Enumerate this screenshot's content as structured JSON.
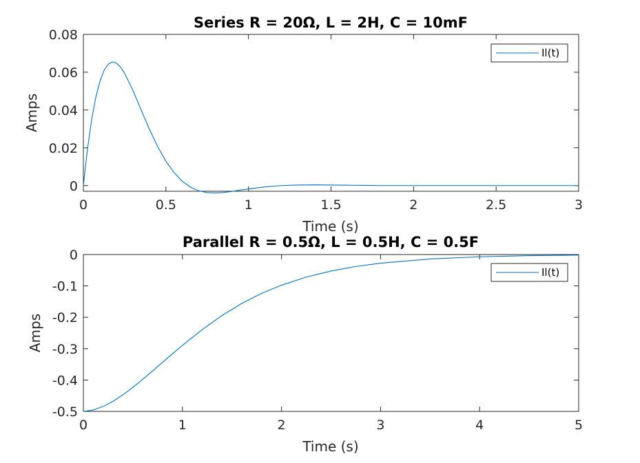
{
  "chart_data": [
    {
      "type": "line",
      "title": "Series R = 20Ω, L = 2H, C = 10mF",
      "xlabel": "Time (s)",
      "ylabel": "Amps",
      "xlim": [
        0,
        3
      ],
      "ylim": [
        -0.003,
        0.08
      ],
      "xticks": [
        0,
        0.5,
        1,
        1.5,
        2,
        2.5,
        3
      ],
      "xtick_labels": [
        "0",
        "0.5",
        "1",
        "1.5",
        "2",
        "2.5",
        "3"
      ],
      "yticks": [
        0,
        0.02,
        0.04,
        0.06,
        0.08
      ],
      "ytick_labels": [
        "0",
        "0.02",
        "0.04",
        "0.06",
        "0.08"
      ],
      "grid": false,
      "legend_position": "top-right",
      "series": [
        {
          "name": "Il(t)",
          "color": "#0072bd",
          "x": [
            0,
            0.025,
            0.05,
            0.075,
            0.1,
            0.125,
            0.15,
            0.175,
            0.2,
            0.225,
            0.25,
            0.3,
            0.35,
            0.4,
            0.45,
            0.5,
            0.55,
            0.6,
            0.65,
            0.7,
            0.75,
            0.8,
            0.85,
            0.9,
            0.95,
            1.0,
            1.1,
            1.2,
            1.3,
            1.4,
            1.5,
            1.6,
            1.7,
            1.8,
            2.0,
            2.2,
            2.4,
            2.6,
            2.8,
            3.0
          ],
          "y": [
            0,
            0.0194,
            0.0348,
            0.0465,
            0.0551,
            0.0609,
            0.0642,
            0.0654,
            0.0648,
            0.0627,
            0.0594,
            0.0504,
            0.04,
            0.0298,
            0.0206,
            0.0129,
            0.0068,
            0.0022,
            -0.0009,
            -0.0028,
            -0.0037,
            -0.0039,
            -0.0036,
            -0.0031,
            -0.0024,
            -0.0018,
            -0.0007,
            0.0,
            0.0003,
            0.0004,
            0.0003,
            0.0002,
            0.0001,
            0.0,
            0,
            0,
            0,
            0,
            0,
            0
          ]
        }
      ]
    },
    {
      "type": "line",
      "title": "Parallel R = 0.5Ω, L = 0.5H, C = 0.5F",
      "xlabel": "Time (s)",
      "ylabel": "Amps",
      "xlim": [
        0,
        5
      ],
      "ylim": [
        -0.5,
        0
      ],
      "xticks": [
        0,
        1,
        2,
        3,
        4,
        5
      ],
      "xtick_labels": [
        "0",
        "1",
        "2",
        "3",
        "4",
        "5"
      ],
      "yticks": [
        -0.5,
        -0.4,
        -0.3,
        -0.2,
        -0.1,
        0
      ],
      "ytick_labels": [
        "-0.5",
        "-0.4",
        "-0.3",
        "-0.2",
        "-0.1",
        "0"
      ],
      "grid": false,
      "legend_position": "top-right",
      "series": [
        {
          "name": "Il(t)",
          "color": "#0072bd",
          "x": [
            0,
            0.1,
            0.2,
            0.3,
            0.4,
            0.5,
            0.6,
            0.7,
            0.8,
            0.9,
            1.0,
            1.2,
            1.4,
            1.6,
            1.8,
            2.0,
            2.25,
            2.5,
            2.75,
            3.0,
            3.5,
            4.0,
            4.5,
            5.0
          ],
          "y": [
            -0.5,
            -0.4955,
            -0.4842,
            -0.4676,
            -0.4469,
            -0.4232,
            -0.3976,
            -0.3707,
            -0.3434,
            -0.3162,
            -0.2895,
            -0.2391,
            -0.1941,
            -0.1557,
            -0.1237,
            -0.0977,
            -0.0718,
            -0.0525,
            -0.0381,
            -0.0275,
            -0.0141,
            -0.0071,
            -0.0035,
            -0.0017
          ]
        }
      ]
    }
  ]
}
